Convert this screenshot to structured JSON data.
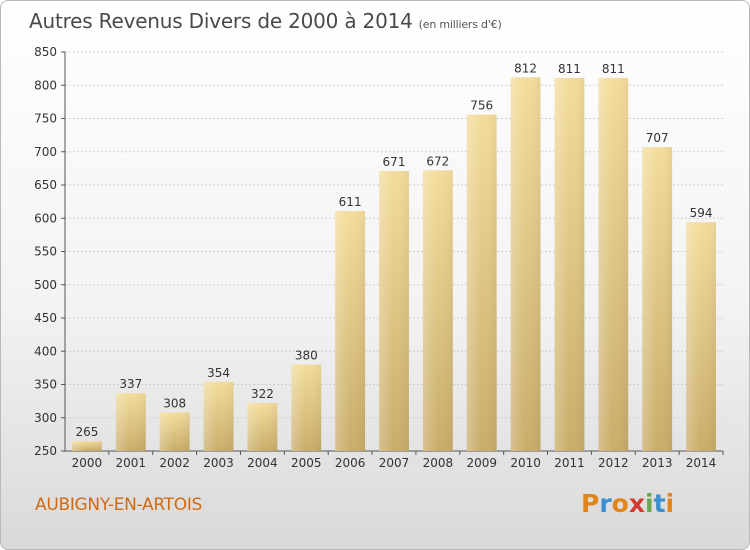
{
  "chart_data": {
    "type": "bar",
    "title": "Autres Revenus Divers de 2000 à 2014",
    "subtitle": "(en milliers d'€)",
    "categories": [
      "2000",
      "2001",
      "2002",
      "2003",
      "2004",
      "2005",
      "2006",
      "2007",
      "2008",
      "2009",
      "2010",
      "2011",
      "2012",
      "2013",
      "2014"
    ],
    "values": [
      265,
      337,
      308,
      354,
      322,
      380,
      611,
      671,
      672,
      756,
      812,
      811,
      811,
      707,
      594
    ],
    "ylim": [
      250,
      850
    ],
    "yticks": [
      250,
      300,
      350,
      400,
      450,
      500,
      550,
      600,
      650,
      700,
      750,
      800,
      850
    ],
    "grid": true,
    "xlabel": "",
    "ylabel": ""
  },
  "footer": {
    "location": "AUBIGNY-EN-ARTOIS",
    "logo_text": "Proxiti",
    "logo_colors": [
      "#e2861b",
      "#3b8fd0",
      "#e2861b",
      "#d63a2f",
      "#6aa84f",
      "#3b8fd0",
      "#e2861b"
    ]
  },
  "colors": {
    "bar_light": "#f3dc9c",
    "bar_dark": "#c8ad6a",
    "grid": "#cfcfcf",
    "axis_text": "#333333"
  }
}
